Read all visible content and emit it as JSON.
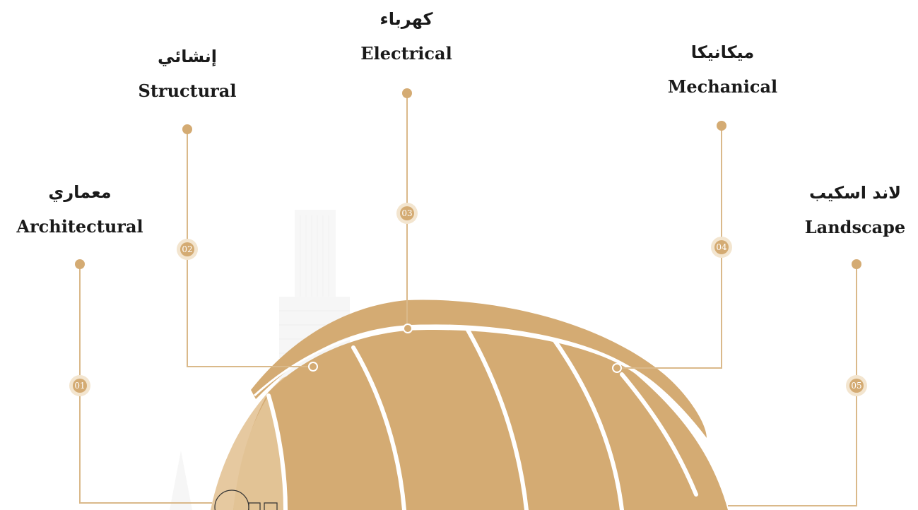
{
  "colors": {
    "gold": "#d4ab73",
    "gold_light": "#e6c9a0",
    "gold_pale": "#f3e5cf",
    "line": "#dab98a",
    "white": "#ffffff"
  },
  "disciplines": [
    {
      "number": "01",
      "arabic": "معماري",
      "english": "Architectural"
    },
    {
      "number": "02",
      "arabic": "إنشائي",
      "english": "Structural"
    },
    {
      "number": "03",
      "arabic": "كهرباء",
      "english": "Electrical"
    },
    {
      "number": "04",
      "arabic": "ميكانيكا",
      "english": "Mechanical"
    },
    {
      "number": "05",
      "arabic": "لاند اسكيب",
      "english": "Landscape"
    }
  ]
}
